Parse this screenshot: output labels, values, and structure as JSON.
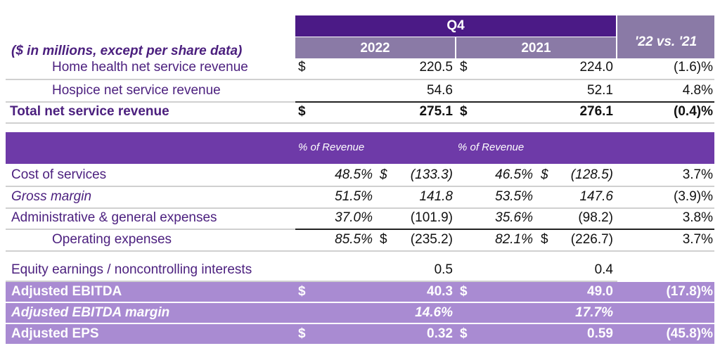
{
  "header": {
    "period": "Q4",
    "col_2022": "2022",
    "col_2021": "2021",
    "col_change": "'22 vs. '21",
    "units_note": "($ in millions, except per share data)"
  },
  "revenue": [
    {
      "label": "Home health net service revenue",
      "cur1": "$",
      "v2022": "220.5",
      "cur2": "$",
      "v2021": "224.0",
      "change": "(1.6)%"
    },
    {
      "label": "Hospice net service revenue",
      "cur1": "",
      "v2022": "54.6",
      "cur2": "",
      "v2021": "52.1",
      "change": "4.8%"
    },
    {
      "label": "Total net service revenue",
      "cur1": "$",
      "v2022": "275.1",
      "cur2": "$",
      "v2021": "276.1",
      "change": "(0.4)%"
    }
  ],
  "band_header": {
    "pct1": "% of Revenue",
    "pct2": "% of Revenue"
  },
  "expenses": [
    {
      "label": "Cost of services",
      "p1": "48.5%",
      "c1": "$",
      "v1": "(133.3)",
      "p2": "46.5%",
      "c2": "$",
      "v2": "(128.5)",
      "change": "3.7%"
    },
    {
      "label": "Gross margin",
      "p1": "51.5%",
      "c1": "",
      "v1": "141.8",
      "p2": "53.5%",
      "c2": "",
      "v2": "147.6",
      "change": "(3.9)%"
    },
    {
      "label": "Administrative & general expenses",
      "p1": "37.0%",
      "c1": "",
      "v1": "(101.9)",
      "p2": "35.6%",
      "c2": "",
      "v2": "(98.2)",
      "change": "3.8%"
    },
    {
      "label": "Operating expenses",
      "p1": "85.5%",
      "c1": "$",
      "v1": "(235.2)",
      "p2": "82.1%",
      "c2": "$",
      "v2": "(226.7)",
      "change": "3.7%"
    }
  ],
  "equity": {
    "label": "Equity earnings / noncontrolling interests",
    "v1": "0.5",
    "v2": "0.4"
  },
  "summary": [
    {
      "label": "Adjusted EBITDA",
      "c1": "$",
      "v1": "40.3",
      "c2": "$",
      "v2": "49.0",
      "change": "(17.8)%"
    },
    {
      "label": "Adjusted EBITDA margin",
      "c1": "",
      "v1": "14.6%",
      "c2": "",
      "v2": "17.7%",
      "change": ""
    },
    {
      "label": "Adjusted EPS",
      "c1": "$",
      "v1": "0.32",
      "c2": "$",
      "v2": "0.59",
      "change": "(45.8)%"
    }
  ],
  "colors": {
    "dark_purple": "#4b1a86",
    "mid_purple": "#6e3aa8",
    "gray_purple": "#8a7aa6",
    "light_purple": "#a98bd2",
    "text_purple": "#4b1f7e"
  }
}
